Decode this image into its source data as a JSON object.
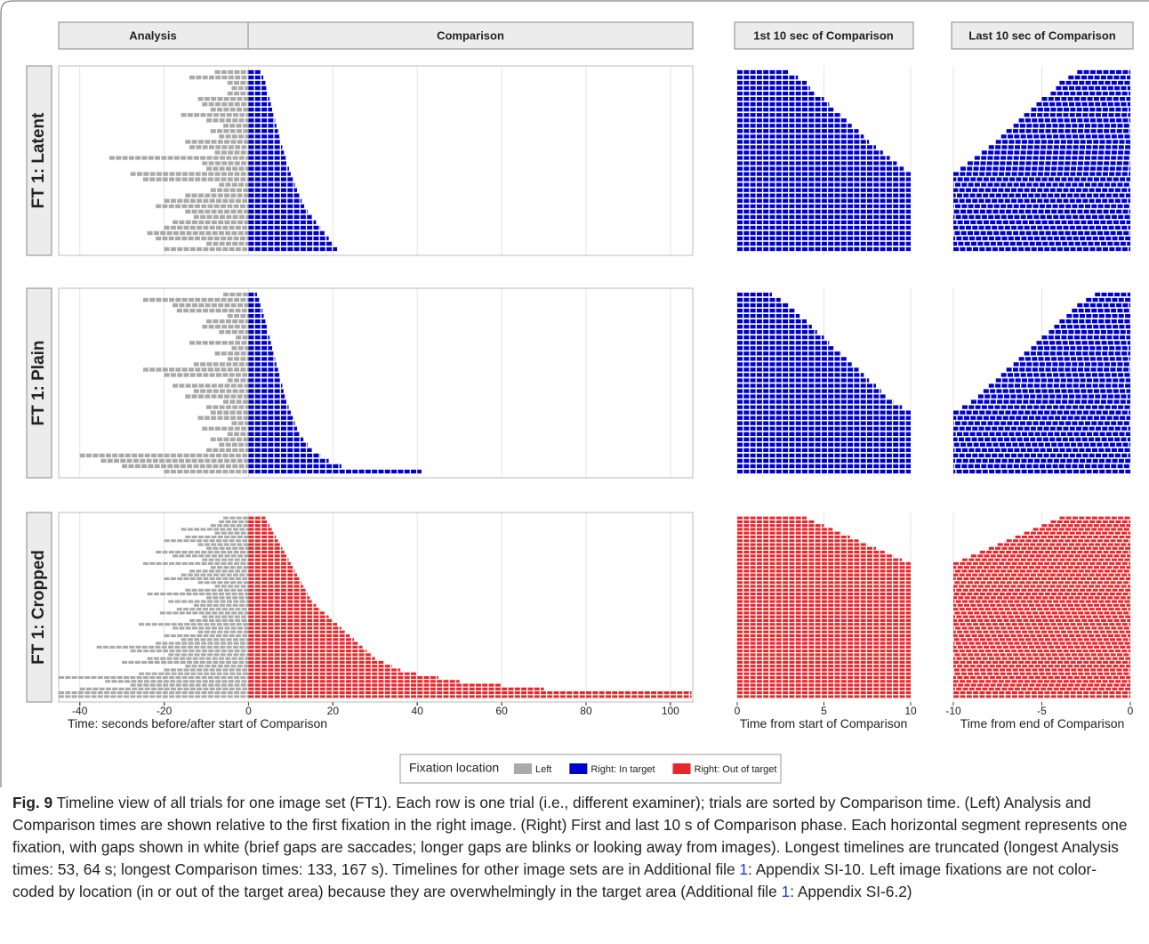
{
  "chart_data": {
    "type": "timeline",
    "strips": [
      "Analysis",
      "Comparison",
      "1st 10 sec of Comparison",
      "Last 10 sec of Comparison"
    ],
    "xlabel": "Time: seconds before/after start of Comparison",
    "xlim": [
      -45,
      105.3
    ],
    "xticks": [
      -40,
      -20,
      0,
      20,
      40,
      60,
      80,
      100
    ],
    "first": {
      "xlabel": "Time from start of Comparison",
      "xlim": [
        0,
        10
      ],
      "xticks": [
        0,
        5,
        10
      ]
    },
    "last": {
      "xlabel": "Time from end of Comparison",
      "xlim": [
        -10,
        0
      ],
      "xticks": [
        -10,
        -5,
        0
      ]
    },
    "legend_title": "Fixation location",
    "series": [
      {
        "name": "Left",
        "color": "#aaaaaa"
      },
      {
        "name": "Right: In target",
        "color": "#0000cc"
      },
      {
        "name": "Right: Out of target",
        "color": "#e8262a"
      }
    ],
    "facets": [
      {
        "label": "FT 1: Latent",
        "color": "#0000cc",
        "start": [
          -8,
          -14,
          -5,
          -4,
          -5,
          -12,
          -11,
          -9,
          -16,
          -10,
          -6,
          -9,
          -7,
          -15,
          -14,
          -8,
          -33,
          -11,
          -10,
          -28,
          -25,
          -7,
          -9,
          -15,
          -20,
          -22,
          -15,
          -13,
          -18,
          -20,
          -24,
          -22,
          -10,
          -20
        ],
        "end": [
          3,
          3.5,
          4,
          4.2,
          4.5,
          5,
          5.3,
          5.6,
          6,
          6.3,
          6.6,
          7,
          7.3,
          7.6,
          8,
          8.4,
          8.8,
          9.2,
          9.6,
          10,
          10.5,
          11,
          11.5,
          12,
          12.6,
          13.2,
          14,
          15,
          16,
          17,
          18,
          19,
          20,
          21
        ]
      },
      {
        "label": "FT 1: Plain",
        "color": "#0000cc",
        "start": [
          -6,
          -25,
          -18,
          -17,
          -5,
          -10,
          -11,
          -7,
          -3,
          -14,
          -4,
          -8,
          -5,
          -13,
          -25,
          -20,
          -5,
          -18,
          -13,
          -15,
          -6,
          -10,
          -9,
          -12,
          -4,
          -11,
          -5,
          -9,
          -7,
          -10,
          -40,
          -35,
          -30,
          -20
        ],
        "end": [
          2,
          2.5,
          3,
          3.3,
          3.6,
          4,
          4.3,
          4.6,
          5,
          5.3,
          5.6,
          6,
          6.3,
          6.6,
          7,
          7.3,
          7.6,
          8,
          8.3,
          8.6,
          9,
          9.5,
          10,
          10.5,
          11,
          11.5,
          12,
          13,
          14,
          15,
          17,
          19,
          22,
          41
        ]
      },
      {
        "label": "FT 1: Cropped",
        "color": "#e8262a",
        "start": [
          -6,
          -7,
          -9,
          -16,
          -8,
          -15,
          -20,
          -12,
          -10,
          -22,
          -18,
          -11,
          -25,
          -9,
          -14,
          -16,
          -20,
          -12,
          -8,
          -15,
          -24,
          -10,
          -19,
          -13,
          -17,
          -21,
          -11,
          -14,
          -26,
          -18,
          -12,
          -20,
          -16,
          -22,
          -36,
          -28,
          -19,
          -24,
          -30,
          -15,
          -20,
          -26,
          -45,
          -34,
          -28,
          -40,
          -45,
          -45
        ],
        "end": [
          4,
          4.5,
          5,
          5.5,
          6,
          6.5,
          7,
          7.5,
          8,
          8.5,
          9,
          9.5,
          10,
          10.5,
          11,
          11.5,
          12,
          12.5,
          13,
          13.5,
          14,
          14.5,
          15,
          16,
          17,
          18,
          19,
          20,
          21,
          22,
          23,
          24,
          25,
          26,
          27,
          28,
          29,
          30,
          32,
          34,
          36,
          40,
          45,
          50,
          60,
          70,
          105,
          105
        ]
      }
    ]
  },
  "caption": {
    "label": "Fig. 9",
    "text_1": " Timeline view of all trials for one image set (FT1). Each row is one trial (i.e., different examiner); trials are sorted by Comparison time. (Left) Analysis and Comparison times are shown relative to the first fixation in the right image. (Right) First and last 10 s of Comparison phase. Each horizontal segment represents one fixation, with gaps shown in white (brief gaps are saccades; longer gaps are blinks or looking away from images). Longest timelines are truncated (longest Analysis times: 53, 64 s; longest Comparison times: 133, 167 s). Timelines for other image sets are in Additional file ",
    "link_1": "1",
    "text_2": ": Appendix SI-10. Left image fixations are not color-coded by location (in or out of the target area) because they are overwhelmingly in the target area (Additional file ",
    "link_2": "1",
    "text_3": ": Appendix SI-6.2)"
  }
}
